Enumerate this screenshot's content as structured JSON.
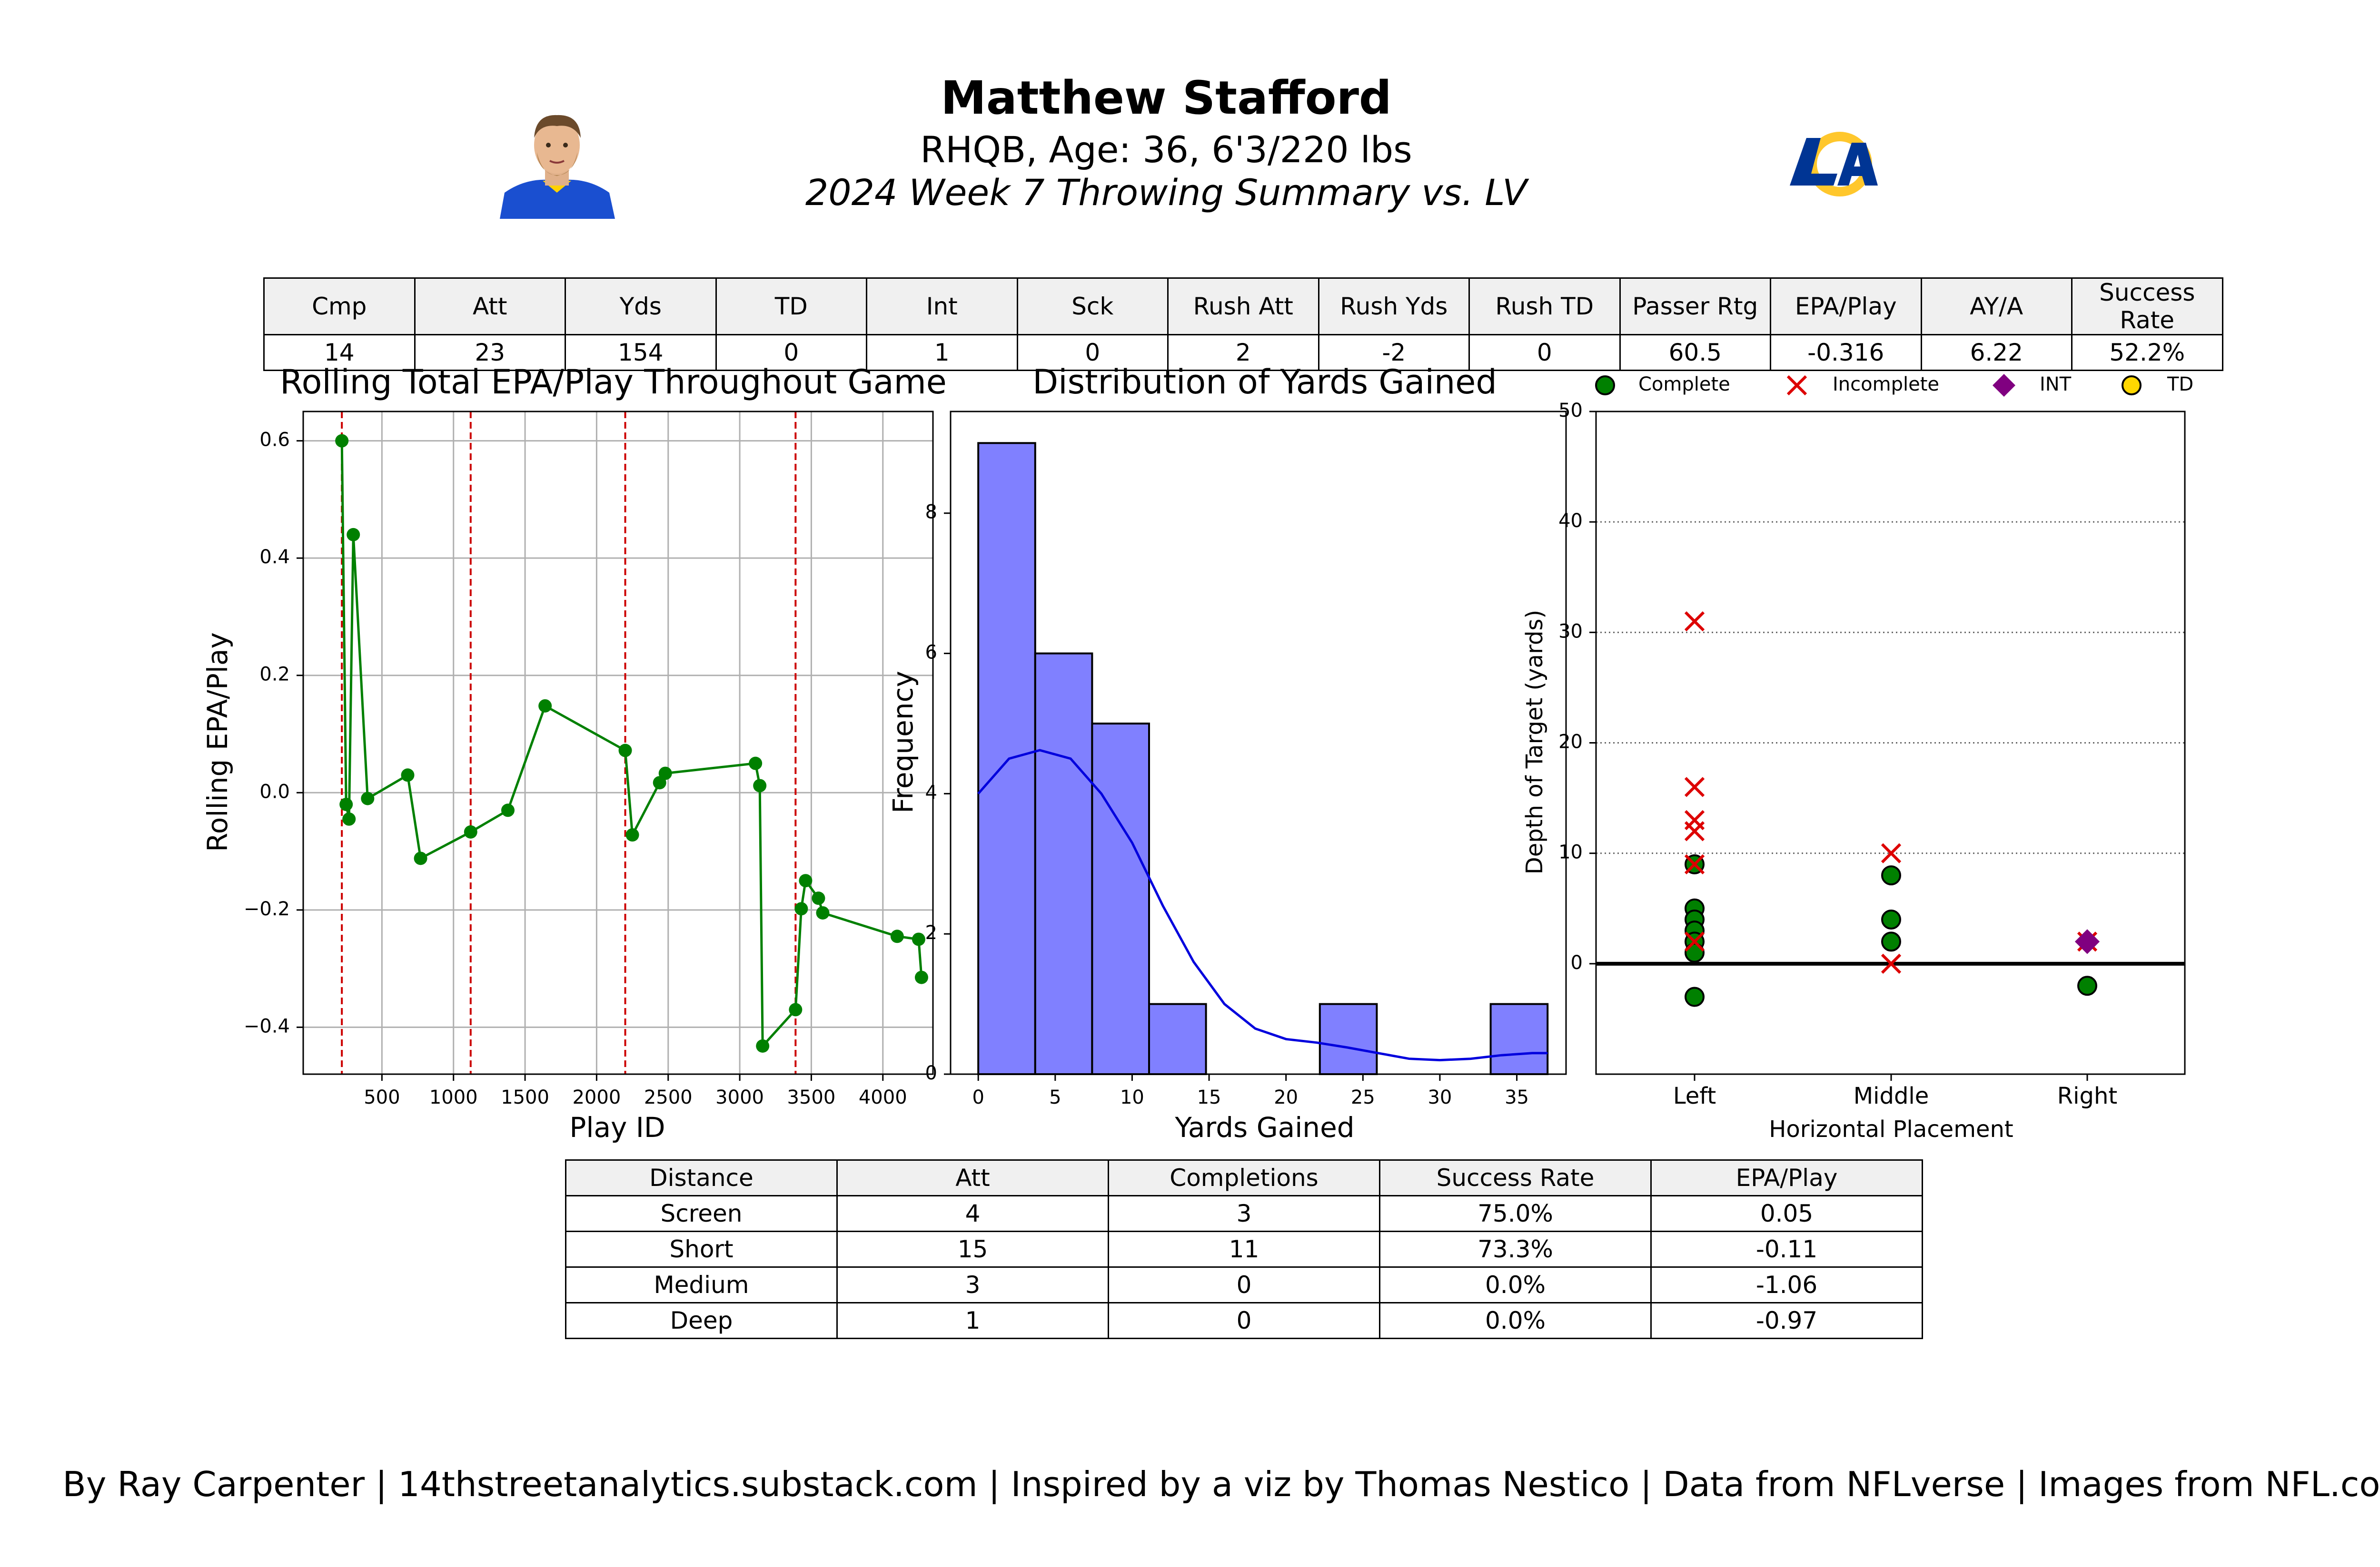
{
  "header": {
    "title": "Matthew Stafford",
    "subtitle": "RHQB, Age: 36, 6'3/220 lbs",
    "subtitle2": "2024 Week 7 Throwing Summary vs. LV"
  },
  "colors": {
    "line": "#008000",
    "hist": "#8080ff",
    "kde": "#0000dd",
    "vline": "#cc0000",
    "incomplete": "#dd0000",
    "int": "#800080",
    "td": "#ffd700",
    "rams_blue": "#003594",
    "rams_gold": "#ffc72c"
  },
  "summary_table": {
    "headers": [
      "Cmp",
      "Att",
      "Yds",
      "TD",
      "Int",
      "Sck",
      "Rush Att",
      "Rush Yds",
      "Rush TD",
      "Passer Rtg",
      "EPA/Play",
      "AY/A",
      "Success Rate"
    ],
    "values": [
      "14",
      "23",
      "154",
      "0",
      "1",
      "0",
      "2",
      "-2",
      "0",
      "60.5",
      "-0.316",
      "6.22",
      "52.2%"
    ]
  },
  "distance_table": {
    "headers": [
      "Distance",
      "Att",
      "Completions",
      "Success Rate",
      "EPA/Play"
    ],
    "rows": [
      [
        "Screen",
        "4",
        "3",
        "75.0%",
        "0.05"
      ],
      [
        "Short",
        "15",
        "11",
        "73.3%",
        "-0.11"
      ],
      [
        "Medium",
        "3",
        "0",
        "0.0%",
        "-1.06"
      ],
      [
        "Deep",
        "1",
        "0",
        "0.0%",
        "-0.97"
      ]
    ]
  },
  "footer": "By Ray Carpenter | 14thstreetanalytics.substack.com | Inspired by a viz by Thomas Nestico | Data from NFLverse | Images from NFL.com",
  "chart_data": [
    {
      "type": "line",
      "title": "Rolling Total EPA/Play Throughout Game",
      "xlabel": "Play ID",
      "ylabel": "Rolling EPA/Play",
      "xlim": [
        -50,
        4350
      ],
      "ylim": [
        -0.48,
        0.65
      ],
      "xticks": [
        500,
        1000,
        1500,
        2000,
        2500,
        3000,
        3500,
        4000
      ],
      "yticks": [
        -0.4,
        -0.2,
        0.0,
        0.2,
        0.4,
        0.6
      ],
      "ytick_labels": [
        "−0.4",
        "−0.2",
        "0.0",
        "0.2",
        "0.4",
        "0.6"
      ],
      "grid": true,
      "quarter_lines": [
        220,
        1120,
        2200,
        3390
      ],
      "x": [
        220,
        250,
        270,
        300,
        400,
        680,
        770,
        1120,
        1380,
        1640,
        2200,
        2250,
        2440,
        2480,
        3110,
        3140,
        3160,
        3390,
        3430,
        3460,
        3550,
        3580,
        4100,
        4250,
        4270
      ],
      "y": [
        0.6,
        -0.02,
        -0.045,
        0.44,
        -0.01,
        0.03,
        -0.112,
        -0.067,
        -0.03,
        0.148,
        0.072,
        -0.072,
        0.017,
        0.033,
        0.05,
        0.012,
        -0.432,
        -0.37,
        -0.198,
        -0.15,
        -0.18,
        -0.205,
        -0.245,
        -0.25,
        -0.315
      ]
    },
    {
      "type": "bar",
      "title": "Distribution of Yards Gained",
      "xlabel": "Yards Gained",
      "ylabel": "Frequency",
      "xlim": [
        -1.8,
        38.2
      ],
      "ylim": [
        0,
        9.45
      ],
      "xticks": [
        0,
        5,
        10,
        15,
        20,
        25,
        30,
        35
      ],
      "yticks": [
        0,
        2,
        4,
        6,
        8
      ],
      "bin_edges": [
        0,
        3.7,
        7.4,
        11.1,
        14.8,
        18.5,
        22.2,
        25.9,
        29.6,
        33.3,
        37
      ],
      "values": [
        9,
        6,
        5,
        1,
        0,
        0,
        1,
        0,
        0,
        1
      ],
      "kde": {
        "x": [
          0,
          2,
          4,
          6,
          8,
          10,
          12,
          14,
          16,
          18,
          20,
          22,
          24,
          26,
          28,
          30,
          32,
          34,
          36,
          37
        ],
        "y": [
          4.0,
          4.5,
          4.62,
          4.5,
          4.0,
          3.3,
          2.4,
          1.6,
          1.0,
          0.65,
          0.5,
          0.45,
          0.38,
          0.3,
          0.22,
          0.2,
          0.22,
          0.27,
          0.3,
          0.3
        ]
      }
    },
    {
      "type": "scatter",
      "xlabel": "Horizontal Placement",
      "ylabel": "Depth of Target (yards)",
      "categories": [
        "Left",
        "Middle",
        "Right"
      ],
      "ylim": [
        -10,
        50
      ],
      "yticks": [
        0,
        10,
        20,
        30,
        40,
        50
      ],
      "legend": [
        "Complete",
        "Incomplete",
        "INT",
        "TD"
      ],
      "series": [
        {
          "name": "Complete",
          "points": [
            [
              "Left",
              9
            ],
            [
              "Left",
              5
            ],
            [
              "Left",
              4
            ],
            [
              "Left",
              3
            ],
            [
              "Left",
              2
            ],
            [
              "Left",
              1
            ],
            [
              "Left",
              -3
            ],
            [
              "Middle",
              8
            ],
            [
              "Middle",
              4
            ],
            [
              "Middle",
              2
            ],
            [
              "Right",
              -2
            ]
          ]
        },
        {
          "name": "Incomplete",
          "points": [
            [
              "Left",
              31
            ],
            [
              "Left",
              16
            ],
            [
              "Left",
              13
            ],
            [
              "Left",
              12
            ],
            [
              "Left",
              9
            ],
            [
              "Left",
              2
            ],
            [
              "Middle",
              10
            ],
            [
              "Middle",
              0
            ],
            [
              "Right",
              2
            ]
          ]
        },
        {
          "name": "INT",
          "points": [
            [
              "Right",
              2
            ]
          ]
        },
        {
          "name": "TD",
          "points": []
        }
      ]
    }
  ]
}
